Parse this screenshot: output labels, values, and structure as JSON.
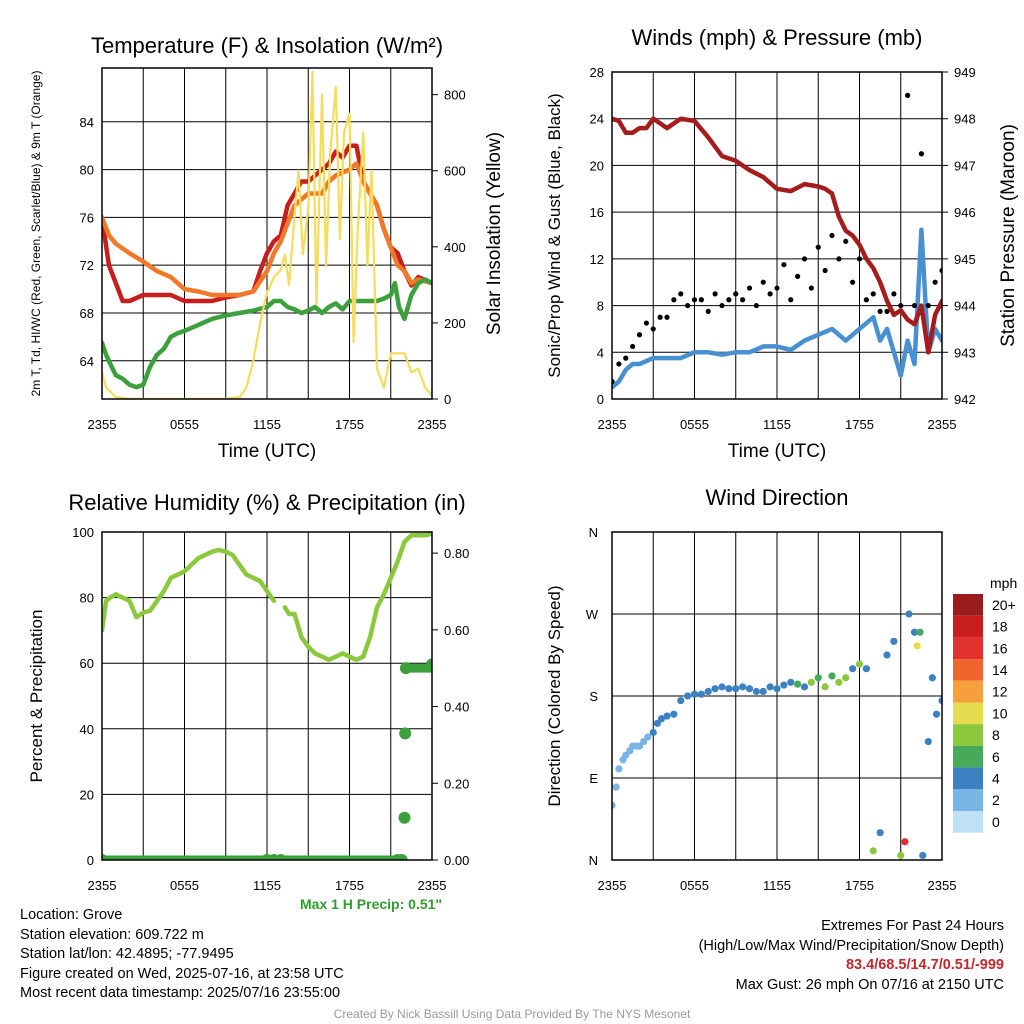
{
  "chart_data": [
    {
      "type": "line",
      "title": "Temperature (F) & Insolation (W/m²)",
      "xlabel": "Time (UTC)",
      "ylabel": "2m T, Td, HI/WC (Red, Green, Scarlet/Blue) & 9m T (Orange)",
      "y2label": "Solar Insolation (Yellow)",
      "x_ticks": [
        "2355",
        "0555",
        "1155",
        "1755",
        "2355"
      ],
      "y_ticks": [
        64,
        68,
        72,
        76,
        80,
        84
      ],
      "y2_ticks": [
        0,
        200,
        400,
        600,
        800
      ],
      "ylim": [
        60.8,
        88.5
      ],
      "y2lim": [
        0,
        870
      ],
      "xlim_hours": [
        0,
        24
      ],
      "series": [
        {
          "name": "2m T",
          "color": "#c81e1e",
          "axis": "left",
          "x": [
            0,
            0.5,
            1.0,
            1.5,
            2.0,
            3.0,
            4.0,
            5.0,
            6.0,
            7.0,
            8.0,
            9.0,
            10.0,
            11.0,
            11.5,
            12.0,
            12.5,
            13.0,
            13.5,
            14.0,
            14.5,
            15.0,
            15.5,
            16.0,
            16.5,
            17.0,
            17.5,
            18.0,
            18.5,
            19.0,
            19.5,
            20.0,
            20.5,
            21.0,
            21.5,
            22.0,
            22.5,
            23.0,
            24.0
          ],
          "y": [
            76.0,
            72.0,
            70.5,
            69.0,
            69.0,
            69.5,
            69.5,
            69.5,
            69.0,
            69.0,
            69.0,
            69.3,
            69.5,
            69.8,
            71.5,
            73.0,
            74.0,
            74.5,
            77.0,
            78.0,
            79.0,
            79.0,
            79.5,
            80.0,
            80.5,
            81.5,
            81.0,
            82.0,
            82.0,
            79.0,
            78.0,
            77.0,
            75.0,
            73.5,
            73.0,
            71.5,
            70.3,
            71.0,
            70.5
          ]
        },
        {
          "name": "9m T",
          "color": "#f07828",
          "axis": "left",
          "x": [
            0,
            0.5,
            1.0,
            2.0,
            3.0,
            4.0,
            5.0,
            6.0,
            7.0,
            8.0,
            9.0,
            10.0,
            11.0,
            12.0,
            12.5,
            13.0,
            13.5,
            14.0,
            15.0,
            16.0,
            16.5,
            17.0,
            18.0,
            18.5,
            19.0,
            20.0,
            20.5,
            21.0,
            21.5,
            22.0,
            22.5,
            23.0,
            24.0
          ],
          "y": [
            76.0,
            74.5,
            73.8,
            73.0,
            72.3,
            71.5,
            71.0,
            70.0,
            69.8,
            69.5,
            69.5,
            69.5,
            69.8,
            71.5,
            73.0,
            74.0,
            75.5,
            77.0,
            78.0,
            78.0,
            79.0,
            79.5,
            80.0,
            80.5,
            79.0,
            77.0,
            75.0,
            73.5,
            72.0,
            71.5,
            70.5,
            70.8,
            70.5
          ]
        },
        {
          "name": "Td",
          "color": "#3ca03c",
          "axis": "left",
          "x": [
            0,
            0.3,
            0.7,
            1.0,
            1.5,
            2.0,
            2.5,
            3.0,
            3.5,
            4.0,
            4.5,
            5.0,
            5.5,
            6.0,
            7.0,
            8.0,
            9.0,
            10.0,
            11.0,
            12.0,
            12.5,
            13.0,
            13.5,
            14.0,
            14.5,
            15.0,
            15.5,
            16.0,
            16.5,
            17.0,
            17.5,
            18.0,
            18.5,
            19.0,
            19.5,
            20.0,
            20.5,
            21.0,
            21.3,
            21.6,
            22.0,
            22.5,
            23.0,
            23.5,
            24.0
          ],
          "y": [
            65.5,
            64.5,
            63.5,
            62.8,
            62.5,
            62.0,
            61.8,
            62.0,
            63.5,
            64.5,
            65.0,
            66.0,
            66.3,
            66.5,
            67.0,
            67.5,
            67.8,
            68.0,
            68.2,
            68.5,
            69.0,
            69.0,
            68.5,
            68.3,
            68.0,
            68.2,
            68.5,
            68.0,
            68.5,
            68.8,
            68.3,
            69.0,
            69.0,
            69.0,
            69.0,
            69.0,
            69.2,
            69.5,
            70.5,
            68.5,
            67.5,
            69.5,
            70.5,
            70.8,
            70.5
          ]
        },
        {
          "name": "Solar Insolation",
          "color": "#f5dc5a",
          "axis": "right",
          "x": [
            0,
            0.3,
            1.0,
            2.0,
            3.0,
            4.0,
            5.0,
            6.0,
            7.0,
            8.0,
            9.0,
            10.0,
            10.5,
            11.0,
            11.5,
            12.0,
            12.5,
            13.0,
            13.3,
            13.6,
            14.0,
            14.3,
            14.6,
            15.0,
            15.3,
            15.6,
            16.0,
            16.3,
            16.6,
            17.0,
            17.3,
            17.6,
            18.0,
            18.3,
            18.6,
            19.0,
            19.3,
            19.6,
            20.0,
            20.5,
            21.0,
            21.5,
            22.0,
            22.5,
            23.0,
            23.5,
            24.0
          ],
          "y": [
            70,
            30,
            5,
            0,
            0,
            0,
            0,
            0,
            0,
            0,
            0,
            5,
            30,
            100,
            200,
            280,
            320,
            340,
            380,
            300,
            480,
            600,
            380,
            500,
            860,
            250,
            800,
            350,
            650,
            820,
            420,
            700,
            750,
            150,
            450,
            700,
            350,
            600,
            80,
            30,
            120,
            120,
            120,
            70,
            80,
            30,
            10
          ]
        }
      ]
    },
    {
      "type": "line",
      "title": "Winds (mph) & Pressure (mb)",
      "xlabel": "Time (UTC)",
      "ylabel": "Sonic/Prop Wind & Gust (Blue, Black)",
      "y2label": "Station Pressure (Maroon)",
      "x_ticks": [
        "2355",
        "0555",
        "1155",
        "1755",
        "2355"
      ],
      "y_ticks": [
        0,
        4,
        8,
        12,
        16,
        20,
        24,
        28
      ],
      "y2_ticks": [
        942,
        943,
        944,
        945,
        946,
        947,
        948,
        949
      ],
      "ylim": [
        0,
        28
      ],
      "y2lim": [
        942,
        949
      ],
      "xlim_hours": [
        0,
        24
      ],
      "series": [
        {
          "name": "Wind",
          "color": "#4a90d0",
          "axis": "left",
          "x": [
            0,
            0.5,
            1.0,
            1.5,
            2.0,
            3.0,
            4.0,
            5.0,
            6.0,
            7.0,
            8.0,
            9.0,
            10.0,
            11.0,
            12.0,
            13.0,
            14.0,
            15.0,
            16.0,
            17.0,
            18.0,
            19.0,
            19.5,
            20.0,
            20.5,
            21.0,
            21.5,
            22.0,
            22.5,
            23.0,
            23.5,
            24.0
          ],
          "y": [
            1.0,
            1.5,
            2.5,
            3.0,
            3.0,
            3.5,
            3.5,
            3.5,
            4.0,
            4.0,
            3.8,
            4.0,
            4.0,
            4.5,
            4.5,
            4.2,
            5.0,
            5.5,
            6.0,
            5.0,
            6.0,
            7.0,
            5.0,
            6.0,
            4.0,
            2.0,
            5.0,
            3.0,
            14.5,
            4.0,
            6.0,
            5.0
          ]
        },
        {
          "name": "Gust",
          "color": "#000000",
          "axis": "left",
          "x": [
            0,
            0.5,
            1.0,
            1.5,
            2.0,
            2.5,
            3.0,
            3.5,
            4.0,
            4.5,
            5.0,
            5.5,
            6.0,
            6.5,
            7.0,
            7.5,
            8.0,
            8.5,
            9.0,
            9.5,
            10.0,
            10.5,
            11.0,
            11.5,
            12.0,
            12.5,
            13.0,
            13.5,
            14.0,
            14.5,
            15.0,
            15.5,
            16.0,
            16.5,
            17.0,
            17.5,
            18.0,
            18.5,
            19.0,
            19.5,
            20.0,
            20.5,
            21.0,
            21.5,
            22.0,
            22.5,
            23.0,
            23.5,
            24.0
          ],
          "y": [
            1.5,
            3.0,
            3.5,
            4.5,
            5.5,
            6.5,
            6.0,
            7.0,
            7.0,
            8.5,
            9.0,
            8.0,
            8.5,
            8.5,
            7.5,
            9.0,
            8.0,
            8.5,
            9.0,
            8.5,
            9.5,
            8.0,
            10.0,
            9.0,
            9.5,
            11.5,
            8.5,
            10.5,
            12.0,
            9.5,
            13.0,
            11.0,
            14.0,
            12.0,
            13.5,
            10.0,
            12.0,
            8.5,
            9.0,
            7.5,
            7.5,
            9.0,
            8.0,
            26.0,
            8.0,
            21.0,
            8.0,
            10.0,
            11.0
          ]
        },
        {
          "name": "Pressure",
          "color": "#a51c1c",
          "axis": "right",
          "x": [
            0,
            0.5,
            1.0,
            1.5,
            2.0,
            2.5,
            3.0,
            4.0,
            5.0,
            6.0,
            7.0,
            8.0,
            9.0,
            10.0,
            11.0,
            12.0,
            13.0,
            14.0,
            15.0,
            15.5,
            16.0,
            16.5,
            17.0,
            17.5,
            18.0,
            18.5,
            19.0,
            19.5,
            20.0,
            20.5,
            21.0,
            21.5,
            22.0,
            22.5,
            23.0,
            23.5,
            24.0
          ],
          "y": [
            948.0,
            947.95,
            947.7,
            947.7,
            947.8,
            947.8,
            948.0,
            947.8,
            948.0,
            947.95,
            947.6,
            947.2,
            947.1,
            946.9,
            946.75,
            946.5,
            946.45,
            946.6,
            946.55,
            946.5,
            946.4,
            945.9,
            945.6,
            945.5,
            945.3,
            945.0,
            944.8,
            944.5,
            944.1,
            943.8,
            943.9,
            943.7,
            943.6,
            944.0,
            943.0,
            943.8,
            944.1
          ]
        }
      ]
    },
    {
      "type": "line",
      "title": "Relative Humidity (%) & Precipitation (in)",
      "xlabel": "",
      "ylabel": "Percent & Precipitation",
      "x_ticks": [
        "2355",
        "0555",
        "1155",
        "1755",
        "2355"
      ],
      "y_ticks": [
        0,
        20,
        40,
        60,
        80,
        100
      ],
      "y2_ticks": [
        "0.00",
        "0.20",
        "0.40",
        "0.60",
        "0.80"
      ],
      "ylim": [
        0,
        100
      ],
      "y2lim": [
        0,
        0.855
      ],
      "xlim_hours": [
        0,
        24
      ],
      "series": [
        {
          "name": "Relative Humidity",
          "color": "#8cc83c",
          "axis": "left",
          "x": [
            0,
            0.3,
            0.6,
            1.0,
            1.5,
            2.0,
            2.5,
            3.0,
            3.5,
            4.0,
            4.5,
            5.0,
            5.5,
            6.0,
            6.5,
            7.0,
            7.5,
            8.0,
            8.5,
            9.0,
            9.5,
            10.0,
            10.5,
            11.0,
            11.5,
            12.0,
            12.5,
            13.0,
            13.3,
            13.6,
            14.0,
            14.5,
            15.0,
            15.5,
            16.0,
            16.5,
            17.0,
            17.5,
            18.0,
            18.5,
            19.0,
            19.5,
            20.0,
            20.5,
            21.0,
            21.5,
            22.0,
            22.5,
            23.0,
            23.5,
            24.0
          ],
          "y": [
            70.0,
            79.0,
            80.0,
            81.0,
            80.0,
            79.0,
            74.0,
            75.5,
            76.0,
            79.0,
            82.0,
            86.0,
            87.0,
            88.0,
            90.0,
            92.0,
            93.0,
            94.0,
            94.5,
            94.0,
            93.0,
            90.0,
            87.0,
            86.0,
            85.0,
            82.0,
            79.0,
            null,
            77.0,
            75.0,
            75.0,
            68.0,
            65.0,
            63.0,
            62.0,
            61.0,
            62.0,
            63.0,
            62.0,
            61.0,
            62.0,
            68.0,
            77.0,
            81.0,
            86.0,
            91.0,
            97.0,
            99.0,
            99.0,
            99.0,
            99.5
          ]
        },
        {
          "name": "Precipitation",
          "color": "#3ca03c",
          "axis": "right",
          "x": [
            0,
            12.0,
            12.5,
            13.0,
            21.5,
            21.8,
            22.0,
            22.05,
            22.1,
            24.0
          ],
          "y": [
            0.0,
            0.0,
            0.0,
            0.0,
            0.0,
            0.0,
            0.11,
            0.33,
            0.5,
            0.51
          ]
        }
      ]
    },
    {
      "type": "scatter",
      "title": "Wind Direction",
      "xlabel": "",
      "ylabel": "Direction (Colored By Speed)",
      "x_ticks": [
        "2355",
        "0555",
        "1155",
        "1755",
        "2355"
      ],
      "y_ticks": [
        "N",
        "E",
        "S",
        "W",
        "N"
      ],
      "ylim": [
        0,
        360
      ],
      "xlim_hours": [
        0,
        24
      ],
      "legend": {
        "title": "mph",
        "labels": [
          "20+",
          "18",
          "16",
          "14",
          "12",
          "10",
          "8",
          "6",
          "4",
          "2",
          "0"
        ],
        "colors": [
          "#9b1c1c",
          "#c81e1e",
          "#e2322d",
          "#f0642d",
          "#f5a03c",
          "#e6dc50",
          "#8cc83c",
          "#46aa5a",
          "#3c82c3",
          "#78b4e6",
          "#bee1f5"
        ]
      },
      "points": {
        "x": [
          0,
          0.3,
          0.5,
          0.8,
          1.0,
          1.3,
          1.5,
          1.8,
          2.0,
          2.3,
          2.6,
          3.0,
          3.3,
          3.6,
          4.0,
          4.5,
          5.0,
          5.5,
          6.0,
          6.5,
          7.0,
          7.5,
          8.0,
          8.5,
          9.0,
          9.5,
          10.0,
          10.5,
          11.0,
          11.5,
          12.0,
          12.5,
          13.0,
          13.5,
          14.0,
          14.5,
          15.0,
          15.5,
          16.0,
          16.5,
          17.0,
          17.5,
          18.0,
          18.5,
          19.0,
          19.5,
          20.0,
          20.5,
          21.0,
          21.3,
          21.6,
          22.0,
          22.2,
          22.4,
          22.6,
          23.0,
          23.3,
          23.6,
          24.0
        ],
        "y": [
          60,
          80,
          100,
          110,
          115,
          120,
          125,
          125,
          125,
          130,
          135,
          140,
          150,
          155,
          158,
          160,
          175,
          180,
          182,
          182,
          185,
          188,
          190,
          188,
          188,
          190,
          188,
          185,
          185,
          190,
          188,
          192,
          195,
          193,
          190,
          195,
          200,
          190,
          202,
          195,
          200,
          210,
          215,
          210,
          10,
          30,
          225,
          240,
          5,
          20,
          270,
          250,
          235,
          250,
          5,
          130,
          200,
          160,
          175
        ],
        "speed": [
          1,
          1,
          1,
          1,
          1,
          1,
          2,
          2,
          2,
          2,
          2,
          3,
          3,
          3,
          3,
          3,
          4,
          4,
          4,
          4,
          4,
          4,
          4,
          4,
          4,
          4,
          4,
          4,
          4,
          4,
          4,
          4,
          4,
          5,
          4,
          7,
          5,
          7,
          6,
          7,
          7,
          4,
          8,
          3,
          7,
          4,
          4,
          4,
          7,
          16,
          4,
          4,
          10,
          6,
          4,
          3,
          4,
          4,
          4
        ]
      }
    }
  ],
  "info": {
    "location": "Location: Grove",
    "elevation": "Station elevation: 609.722 m",
    "latlon": "Station lat/lon: 42.4895; -77.9495",
    "created": "Figure created on Wed, 2025-07-16, at 23:58 UTC",
    "recent": "Most recent data timestamp: 2025/07/16 23:55:00"
  },
  "extremes": {
    "heading": "Extremes For Past 24 Hours",
    "subheading": "(High/Low/Max Wind/Precipitation/Snow Depth)",
    "values": "83.4/68.5/14.7/0.51/-999",
    "gust": "Max Gust: 26 mph On 07/16 at 2150 UTC"
  },
  "max_precip": "Max 1 H Precip: 0.51\"",
  "credit": "Created By Nick Bassill Using Data Provided By The NYS Mesonet"
}
